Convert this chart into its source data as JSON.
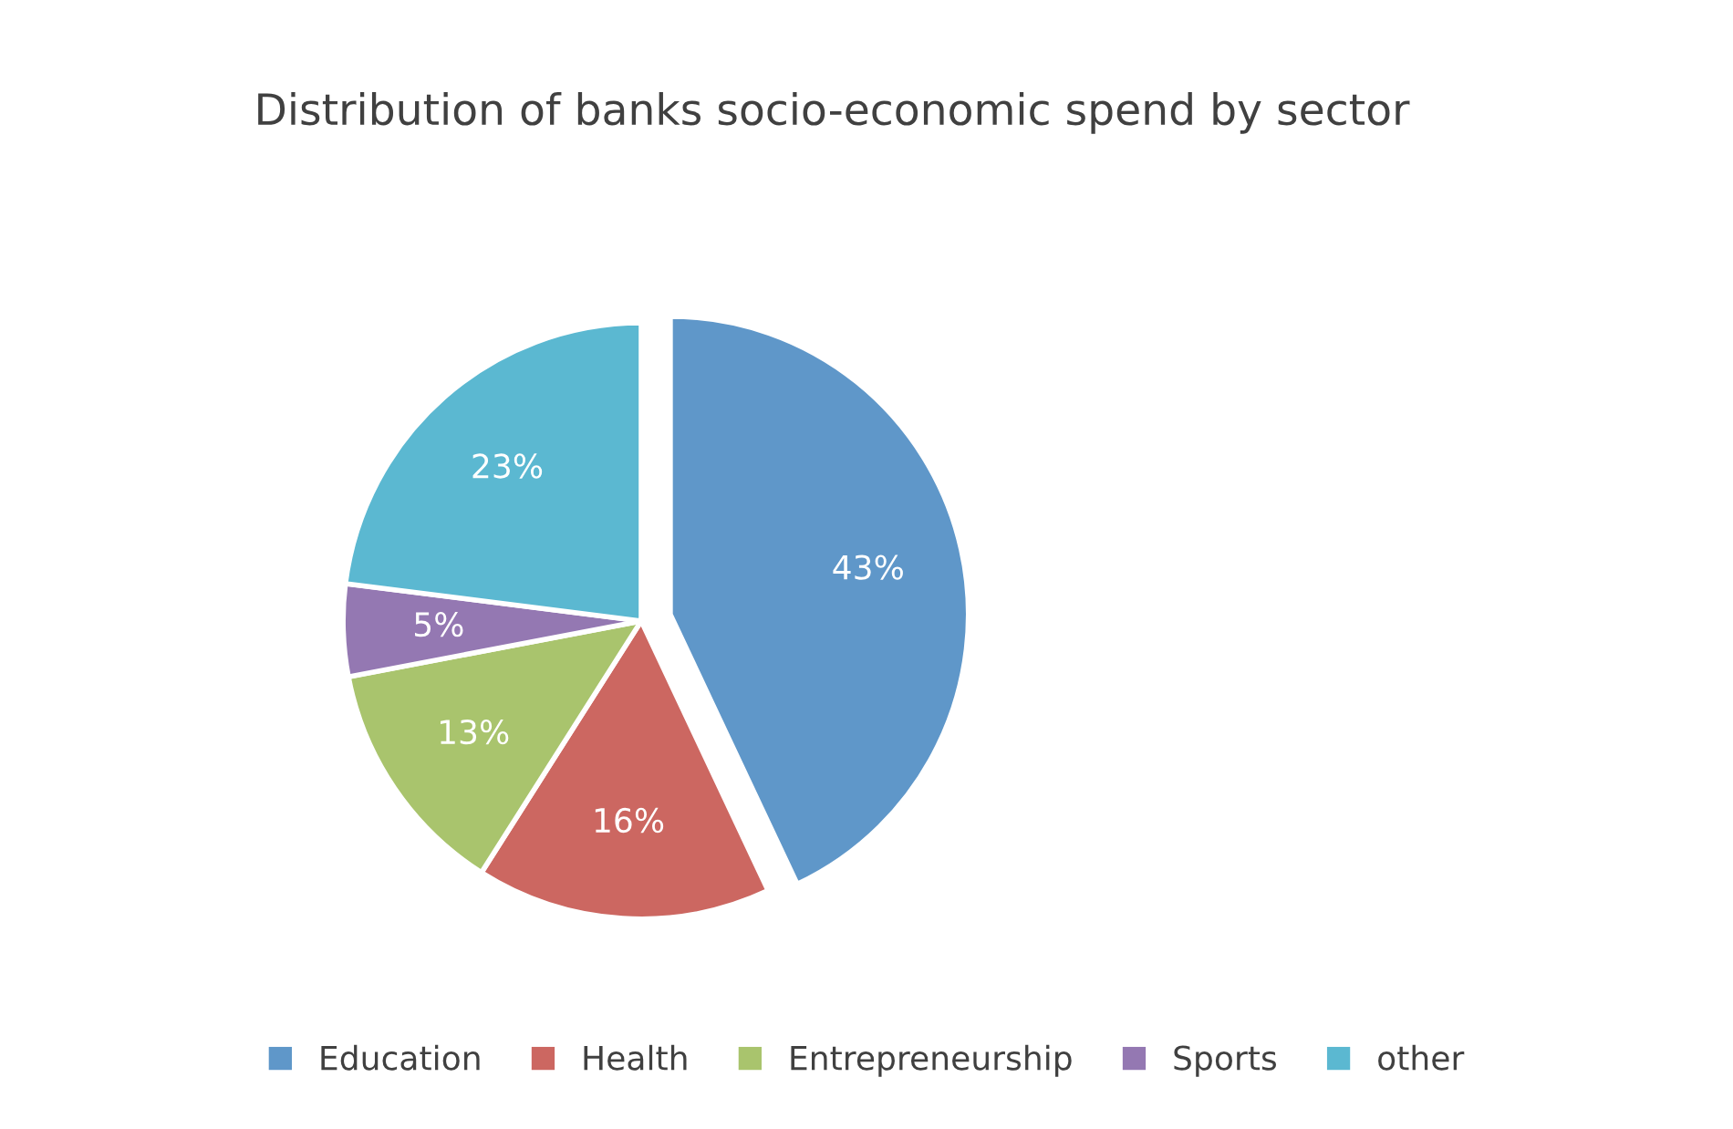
{
  "chart_data": {
    "type": "pie",
    "title": "Distribution of banks socio-economic spend by sector",
    "categories": [
      "Education",
      "Health",
      "Entrepreneurship",
      "Sports",
      "other"
    ],
    "values": [
      43,
      16,
      13,
      5,
      23
    ],
    "colors": [
      "#5f97c9",
      "#cc6761",
      "#a9c46d",
      "#9478b2",
      "#5bb8d1"
    ],
    "value_labels": [
      "43%",
      "16%",
      "13%",
      "5%",
      "23%"
    ],
    "legend": "bottom"
  }
}
